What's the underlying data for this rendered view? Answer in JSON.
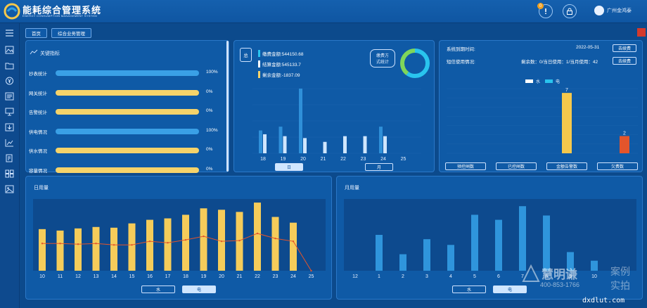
{
  "header": {
    "title": "能耗综合管理系统",
    "subtitle": "ENERGY CONSUMPTION MANAGEMENT SYSTEM",
    "notification_count": "0",
    "user_name": "广州金鸿泰"
  },
  "nav": {
    "home": "首页",
    "manage": "综合业务管理"
  },
  "kpi_panel": {
    "title": "关键指标",
    "items": [
      {
        "label": "抄表统计",
        "percent": "100%",
        "fill": 1.0,
        "color": "#3aa0e6"
      },
      {
        "label": "网关统计",
        "percent": "0%",
        "fill": 0.0,
        "color": "#f5d36a"
      },
      {
        "label": "告警统计",
        "percent": "0%",
        "fill": 0.0,
        "color": "#f5d36a"
      },
      {
        "label": "供电情况",
        "percent": "100%",
        "fill": 1.0,
        "color": "#3aa0e6"
      },
      {
        "label": "供水情况",
        "percent": "0%",
        "fill": 0.0,
        "color": "#f5d36a"
      },
      {
        "label": "容量情况",
        "percent": "0%",
        "fill": 0.0,
        "color": "#f5d36a"
      }
    ]
  },
  "payment": {
    "tag": "总",
    "lines": [
      "缴费金额:544150.68",
      "结算金额:545133.7",
      "剩余金额:-1837.09"
    ],
    "method_btn_line1": "缴费方",
    "method_btn_line2": "式统计",
    "tab_day": "日",
    "tab_month": "月"
  },
  "expiry": {
    "expiry_label": "系统到期时间:",
    "expiry_date": "2022-05-31",
    "renew_btn": "去续费",
    "sms_label": "短信使用情况:",
    "sms_stats": "剩余数：0/当日使用：1/当月使用：42",
    "renew_btn2": "去续费",
    "legend_water": "水",
    "legend_power": "电",
    "btn1": "预控闸数",
    "btn2": "已控闸数",
    "btn3": "金额告警数",
    "btn4": "欠费数"
  },
  "daily": {
    "title": "日用量",
    "tab_water": "水",
    "tab_power": "电"
  },
  "monthly": {
    "title": "月用量",
    "tab_water": "水",
    "tab_power": "电"
  },
  "watermark": {
    "brand": "慧明谦",
    "phone": "400-853-1766",
    "tag1": "案例",
    "tag2": "实拍",
    "site": "dxdlut.com"
  },
  "chart_data": [
    {
      "type": "bar",
      "categories": [
        "18",
        "19",
        "20",
        "21",
        "22",
        "23",
        "24",
        "25"
      ],
      "series": [
        {
          "values": [
            6,
            7,
            17,
            0,
            0,
            0,
            7,
            0
          ],
          "color": "#2f8fd8"
        },
        {
          "values": [
            5,
            4.5,
            4,
            3,
            4.5,
            4.5,
            4.5,
            0
          ],
          "color": "#cfe6ff"
        }
      ],
      "ylim": [
        0,
        17
      ]
    },
    {
      "type": "pie",
      "slices": [
        {
          "value": 60,
          "color": "#29c4ee"
        },
        {
          "value": 40,
          "color": "#7fd65a"
        }
      ]
    },
    {
      "type": "bar",
      "categories": [
        "水",
        "电"
      ],
      "values": [
        7,
        2
      ],
      "data_labels": [
        "7",
        "2"
      ],
      "colors": [
        "#f5c84c",
        "#e4552b"
      ],
      "ylim": [
        0,
        7.5
      ]
    },
    {
      "type": "bar",
      "categories": [
        "10",
        "11",
        "12",
        "13",
        "14",
        "15",
        "16",
        "17",
        "18",
        "19",
        "20",
        "21",
        "22",
        "23",
        "24",
        "25"
      ],
      "values": [
        58,
        56,
        59,
        61,
        60,
        66,
        71,
        73,
        78,
        87,
        85,
        82,
        95,
        75,
        67,
        0
      ],
      "line": [
        38,
        38,
        37,
        38,
        36,
        36,
        41,
        39,
        43,
        48,
        41,
        42,
        52,
        45,
        41,
        0
      ],
      "bar_color": "#f5cc5a",
      "line_color": "#e4552b",
      "ylim": [
        0,
        100
      ]
    },
    {
      "type": "bar",
      "categories": [
        "12",
        "1",
        "2",
        "3",
        "4",
        "5",
        "6",
        "7",
        "8",
        "9",
        "10"
      ],
      "values": [
        0,
        50,
        23,
        44,
        36,
        78,
        71,
        90,
        77,
        26,
        14
      ],
      "bar_color": "#2f95dc",
      "ylim": [
        0,
        100
      ]
    }
  ]
}
